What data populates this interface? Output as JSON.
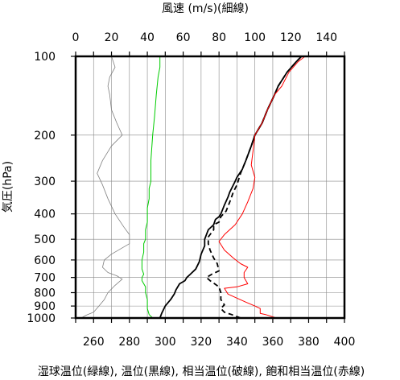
{
  "chart_data": {
    "type": "line",
    "title": "風速 (m/s)(細線)",
    "xlabel": "湿球温位(緑線), 温位(黒線), 相当温位(破線), 飽和相当温位(赤線)",
    "ylabel": "気圧(hPa)",
    "y_scale": "log",
    "y_inverted": true,
    "ylim": [
      1000,
      100
    ],
    "xlim_bottom": [
      250,
      400
    ],
    "xlim_top": [
      0,
      150
    ],
    "bottom_ticks": [
      260,
      280,
      300,
      320,
      340,
      360,
      380,
      400
    ],
    "top_ticks": [
      0,
      20,
      40,
      60,
      80,
      100,
      120,
      140
    ],
    "y_ticks": [
      100,
      200,
      300,
      400,
      500,
      600,
      700,
      800,
      900,
      1000
    ],
    "grid": true,
    "series": [
      {
        "axis": "top",
        "style": "thin",
        "color": "#808080",
        "points": [
          [
            3,
            1000
          ],
          [
            6,
            975
          ],
          [
            10,
            950
          ],
          [
            13,
            900
          ],
          [
            16,
            850
          ],
          [
            18,
            800
          ],
          [
            22,
            750
          ],
          [
            26,
            710
          ],
          [
            23,
            690
          ],
          [
            18,
            670
          ],
          [
            15,
            640
          ],
          [
            16,
            600
          ],
          [
            20,
            570
          ],
          [
            30,
            520
          ],
          [
            30,
            480
          ],
          [
            27,
            450
          ],
          [
            22,
            400
          ],
          [
            18,
            350
          ],
          [
            15,
            310
          ],
          [
            12,
            280
          ],
          [
            15,
            250
          ],
          [
            20,
            220
          ],
          [
            26,
            200
          ],
          [
            23,
            180
          ],
          [
            20,
            160
          ],
          [
            19,
            140
          ],
          [
            18,
            130
          ],
          [
            19,
            120
          ],
          [
            22,
            110
          ],
          [
            20,
            100
          ]
        ]
      },
      {
        "axis": "bottom",
        "color": "#00cc00",
        "points": [
          [
            293,
            1000
          ],
          [
            291,
            970
          ],
          [
            290,
            920
          ],
          [
            290,
            880
          ],
          [
            290,
            850
          ],
          [
            289,
            800
          ],
          [
            289,
            760
          ],
          [
            287,
            720
          ],
          [
            287,
            700
          ],
          [
            288,
            680
          ],
          [
            287,
            650
          ],
          [
            287,
            620
          ],
          [
            287,
            600
          ],
          [
            288,
            560
          ],
          [
            288,
            520
          ],
          [
            289,
            500
          ],
          [
            289,
            460
          ],
          [
            290,
            430
          ],
          [
            290,
            400
          ],
          [
            290,
            380
          ],
          [
            291,
            350
          ],
          [
            291,
            320
          ],
          [
            292,
            300
          ],
          [
            292,
            250
          ],
          [
            293,
            200
          ],
          [
            294,
            170
          ],
          [
            295,
            140
          ],
          [
            296,
            120
          ],
          [
            297,
            110
          ],
          [
            297,
            100
          ]
        ]
      },
      {
        "axis": "bottom",
        "color": "#000000",
        "points": [
          [
            297,
            1000
          ],
          [
            298,
            960
          ],
          [
            300,
            900
          ],
          [
            303,
            850
          ],
          [
            305,
            810
          ],
          [
            306,
            780
          ],
          [
            308,
            740
          ],
          [
            311,
            720
          ],
          [
            312,
            700
          ],
          [
            314,
            680
          ],
          [
            317,
            650
          ],
          [
            319,
            610
          ],
          [
            320,
            570
          ],
          [
            322,
            530
          ],
          [
            322,
            500
          ],
          [
            323,
            480
          ],
          [
            324,
            460
          ],
          [
            327,
            440
          ],
          [
            328,
            420
          ],
          [
            330,
            410
          ],
          [
            331,
            400
          ],
          [
            332,
            385
          ],
          [
            333,
            370
          ],
          [
            335,
            345
          ],
          [
            336,
            330
          ],
          [
            337,
            320
          ],
          [
            339,
            300
          ],
          [
            340,
            290
          ],
          [
            343,
            270
          ],
          [
            345,
            250
          ],
          [
            348,
            220
          ],
          [
            350,
            200
          ],
          [
            354,
            180
          ],
          [
            357,
            160
          ],
          [
            361,
            140
          ],
          [
            363,
            130
          ],
          [
            368,
            115
          ],
          [
            373,
            105
          ],
          [
            376,
            100
          ]
        ]
      },
      {
        "axis": "bottom",
        "dashed": true,
        "color": "#000000",
        "points": [
          [
            342,
            1000
          ],
          [
            337,
            970
          ],
          [
            333,
            950
          ],
          [
            331,
            920
          ],
          [
            333,
            890
          ],
          [
            331,
            850
          ],
          [
            331,
            800
          ],
          [
            330,
            760
          ],
          [
            325,
            720
          ],
          [
            323,
            700
          ],
          [
            326,
            680
          ],
          [
            330,
            660
          ],
          [
            329,
            620
          ],
          [
            327,
            590
          ],
          [
            325,
            550
          ],
          [
            324,
            520
          ],
          [
            324,
            490
          ],
          [
            327,
            460
          ],
          [
            327,
            440
          ],
          [
            330,
            430
          ],
          [
            331,
            410
          ],
          [
            334,
            390
          ],
          [
            336,
            360
          ],
          [
            338,
            330
          ],
          [
            340,
            310
          ],
          [
            342,
            280
          ],
          [
            345,
            250
          ],
          [
            348,
            220
          ],
          [
            350,
            200
          ],
          [
            354,
            180
          ],
          [
            357,
            160
          ],
          [
            361,
            140
          ],
          [
            363,
            130
          ],
          [
            368,
            115
          ],
          [
            373,
            105
          ],
          [
            376,
            100
          ]
        ]
      },
      {
        "axis": "bottom",
        "color": "#ff0000",
        "points": [
          [
            362,
            1000
          ],
          [
            356,
            970
          ],
          [
            353,
            960
          ],
          [
            353,
            920
          ],
          [
            350,
            900
          ],
          [
            345,
            870
          ],
          [
            335,
            810
          ],
          [
            333,
            770
          ],
          [
            340,
            760
          ],
          [
            346,
            740
          ],
          [
            344,
            700
          ],
          [
            344,
            670
          ],
          [
            346,
            640
          ],
          [
            342,
            620
          ],
          [
            338,
            590
          ],
          [
            333,
            550
          ],
          [
            330,
            510
          ],
          [
            333,
            480
          ],
          [
            339,
            440
          ],
          [
            343,
            400
          ],
          [
            346,
            360
          ],
          [
            349,
            320
          ],
          [
            350,
            290
          ],
          [
            348,
            260
          ],
          [
            349,
            230
          ],
          [
            350,
            200
          ],
          [
            354,
            180
          ],
          [
            357,
            160
          ],
          [
            361,
            140
          ],
          [
            365,
            130
          ],
          [
            369,
            115
          ],
          [
            374,
            105
          ],
          [
            378,
            100
          ]
        ]
      }
    ]
  }
}
